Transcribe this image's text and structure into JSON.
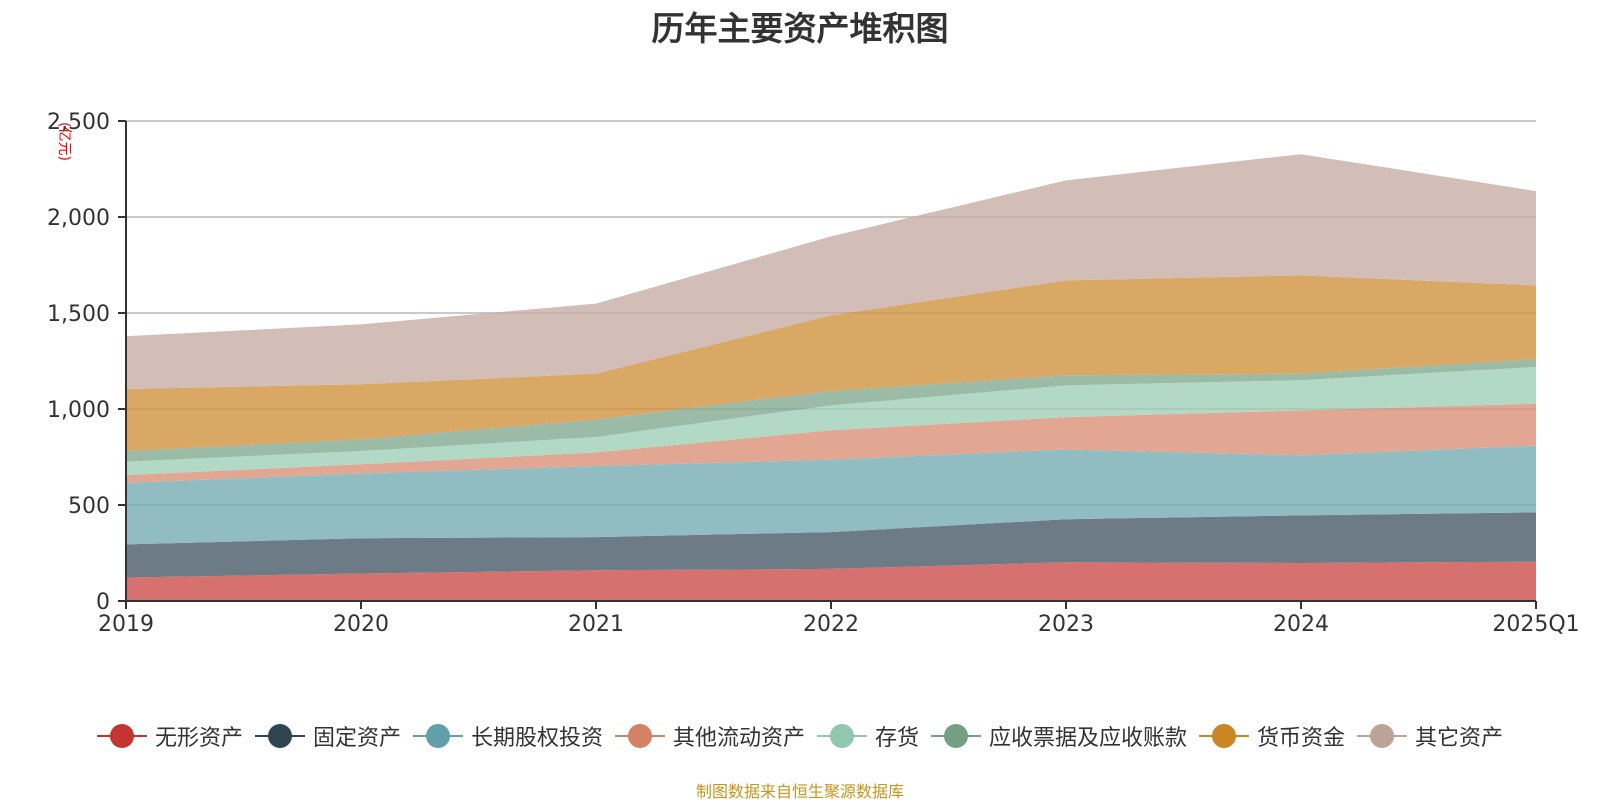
{
  "chart_data": {
    "type": "area",
    "stacked": true,
    "title": "历年主要资产堆积图",
    "ylabel": "(亿元)",
    "xlabel": "",
    "categories": [
      "2019",
      "2020",
      "2021",
      "2022",
      "2023",
      "2024",
      "2025Q1"
    ],
    "ylim": [
      0,
      2500
    ],
    "yticks": [
      0,
      500,
      1000,
      1500,
      2000,
      2500
    ],
    "ytick_labels": [
      "0",
      "500",
      "1,000",
      "1,500",
      "2,000",
      "2,500"
    ],
    "grid": true,
    "legend_position": "bottom",
    "series": [
      {
        "name": "无形资产",
        "color": "#c23531",
        "fill": "#d7716f",
        "values": [
          122,
          143,
          160,
          167,
          202,
          198,
          205
        ]
      },
      {
        "name": "固定资产",
        "color": "#2f4554",
        "fill": "#6d7b87",
        "values": [
          173,
          184,
          173,
          192,
          224,
          248,
          257
        ]
      },
      {
        "name": "长期股权投资",
        "color": "#61a0a8",
        "fill": "#91bcc2",
        "values": [
          320,
          337,
          370,
          377,
          363,
          313,
          347
        ]
      },
      {
        "name": "其他流动资产",
        "color": "#d48265",
        "fill": "#e1a793",
        "values": [
          41,
          48,
          71,
          153,
          169,
          234,
          219
        ]
      },
      {
        "name": "存货",
        "color": "#91c7ae",
        "fill": "#b2d8c6",
        "values": [
          70,
          69,
          80,
          130,
          165,
          157,
          191
        ]
      },
      {
        "name": "应收票据及应收账款",
        "color": "#749f83",
        "fill": "#9cbba7",
        "values": [
          55,
          61,
          91,
          75,
          53,
          34,
          41
        ]
      },
      {
        "name": "货币资金",
        "color": "#ca8622",
        "fill": "#d9a864",
        "values": [
          323,
          287,
          239,
          394,
          494,
          512,
          384
        ]
      },
      {
        "name": "其它资产",
        "color": "#bda29a",
        "fill": "#d2bdb7",
        "values": [
          275,
          312,
          365,
          411,
          521,
          631,
          491
        ]
      }
    ]
  },
  "source_note": "制图数据来自恒生聚源数据库"
}
